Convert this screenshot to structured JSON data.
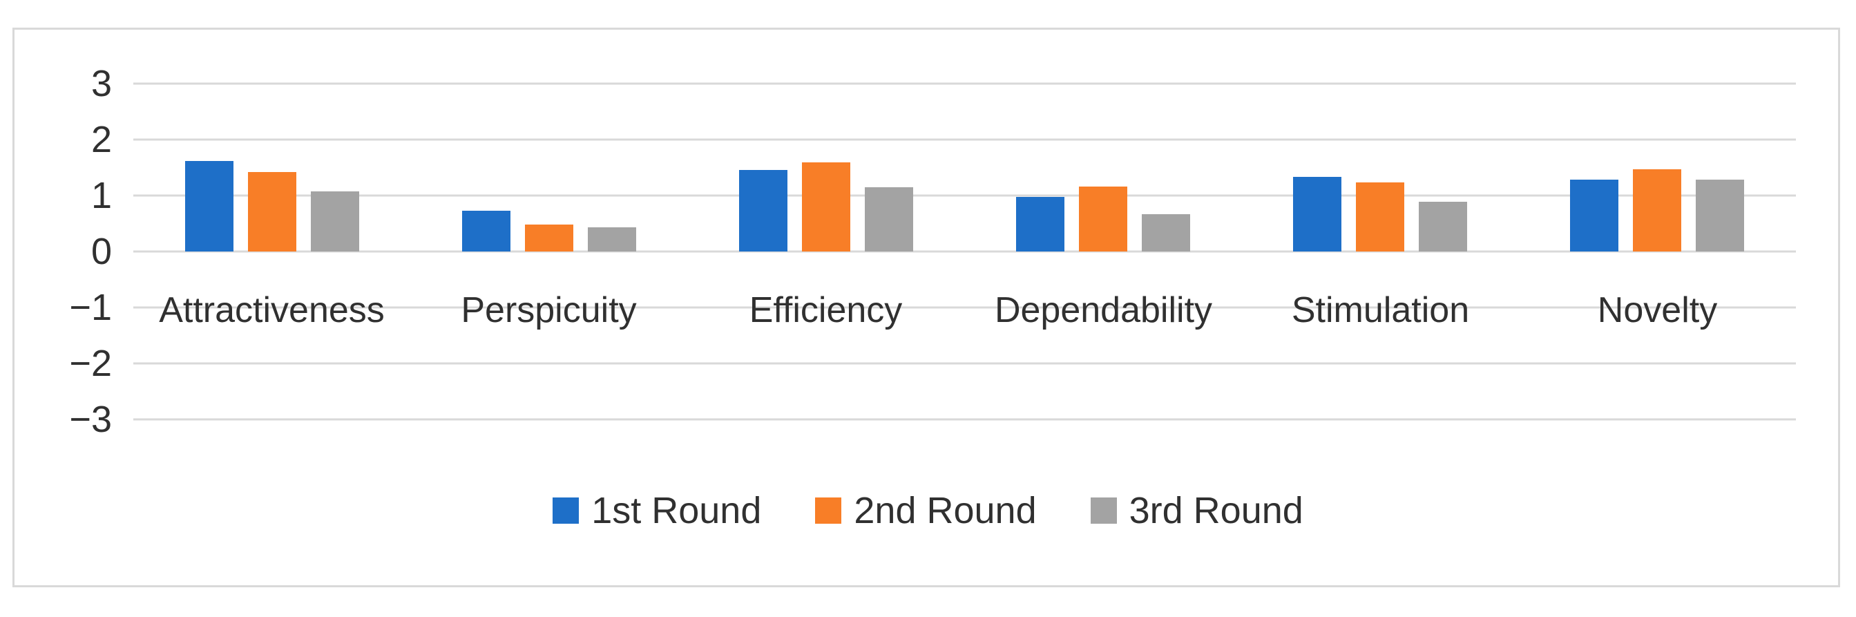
{
  "chart_data": {
    "type": "bar",
    "title": "",
    "xlabel": "",
    "ylabel": "",
    "categories": [
      "Attractiveness",
      "Perspicuity",
      "Efficiency",
      "Dependability",
      "Stimulation",
      "Novelty"
    ],
    "series": [
      {
        "name": "1st Round",
        "color": "#1E6FC8",
        "values": [
          1.62,
          0.73,
          1.46,
          0.97,
          1.33,
          1.29
        ]
      },
      {
        "name": "2nd Round",
        "color": "#F87E27",
        "values": [
          1.42,
          0.48,
          1.59,
          1.16,
          1.24,
          1.47
        ]
      },
      {
        "name": "3rd Round",
        "color": "#A3A3A3",
        "values": [
          1.07,
          0.43,
          1.15,
          0.67,
          0.89,
          1.28
        ]
      }
    ],
    "ylim": [
      -3,
      3
    ],
    "yticks": [
      3,
      2,
      1,
      0,
      -1,
      -2,
      -3
    ],
    "ytick_labels": [
      "3",
      "2",
      "1",
      "0",
      "−1",
      "−2",
      "−3"
    ],
    "grid": "horizontal",
    "legend_position": "bottom-center"
  },
  "colors": {
    "background": "#FFFFFF",
    "frame_border": "#D9D9D9",
    "gridline": "#D9D9D9",
    "tick_text": "#303030",
    "category_text": "#303030",
    "legend_text": "#303030",
    "series_blue": "#1E6FC8",
    "series_orange": "#F87E27",
    "series_gray": "#A3A3A3"
  }
}
